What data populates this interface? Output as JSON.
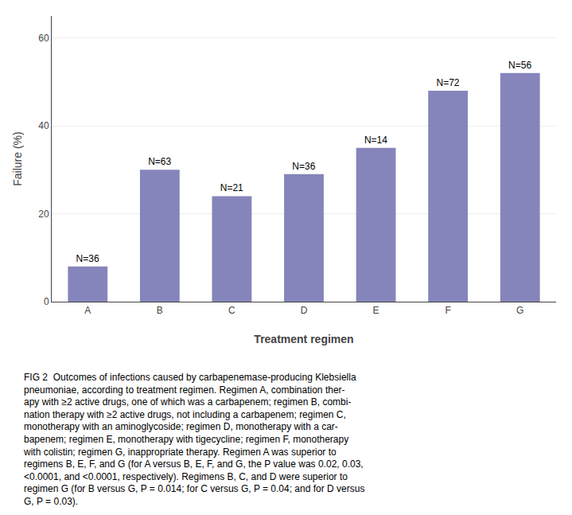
{
  "chart_data": {
    "type": "bar",
    "categories": [
      "A",
      "B",
      "C",
      "D",
      "E",
      "F",
      "G"
    ],
    "values": [
      8,
      30,
      24,
      29,
      35,
      48,
      52
    ],
    "bar_labels": [
      "N=36",
      "N=63",
      "N=21",
      "N=36",
      "N=14",
      "N=72",
      "N=56"
    ],
    "color": "#8585bb",
    "xlabel": "Treatment regimen",
    "ylabel": "Failure (%)",
    "ylim": [
      0,
      65
    ],
    "yticks": [
      0,
      20,
      40,
      60
    ],
    "grid": true,
    "caption": [
      "FIG 2  Outcomes of infections caused by carbapenemase-producing Klebsiella",
      "pneumoniae, according to treatment regimen. Regimen A, combination ther-",
      "apy with ≥2 active drugs, one of which was a carbapenem; regimen B, combi-",
      "nation therapy with ≥2 active drugs, not including a carbapenem; regimen C,",
      "monotherapy with an aminoglycoside; regimen D, monotherapy with a car-",
      "bapenem; regimen E, monotherapy with tigecycline; regimen F, monotherapy",
      "with colistin; regimen G, inappropriate therapy. Regimen A was superior to",
      "regimens B, E, F, and G (for A versus B, E, F, and G, the P value was 0.02, 0.03,",
      "<0.0001, and <0.0001, respectively). Regimens B, C, and D were superior to",
      "regimen G (for B versus G, P = 0.014; for C versus G, P = 0.04; and for D versus",
      "G, P = 0.03)."
    ]
  }
}
